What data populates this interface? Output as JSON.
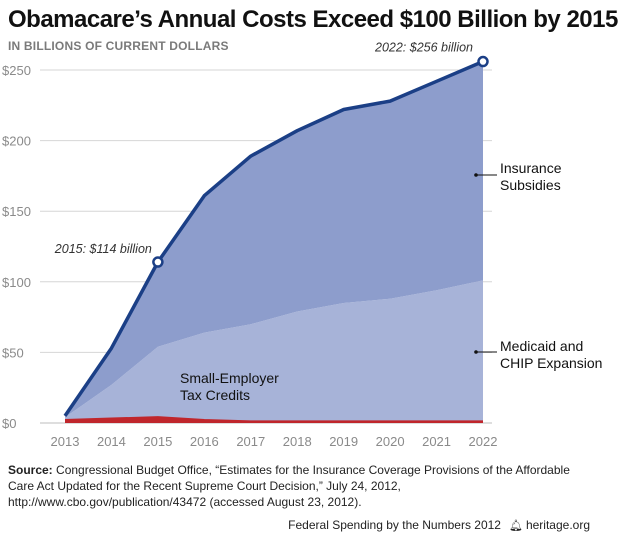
{
  "header": {
    "title": "Obamacare’s Annual Costs Exceed $100 Billion by 2015",
    "subtitle": "IN BILLIONS OF CURRENT DOLLARS"
  },
  "chart_data": {
    "type": "area",
    "stacked": true,
    "x": [
      2013,
      2014,
      2015,
      2016,
      2017,
      2018,
      2019,
      2020,
      2021,
      2022
    ],
    "ylim": [
      0,
      250
    ],
    "y_ticks": [
      "$0",
      "$50",
      "$100",
      "$150",
      "$200",
      "$250"
    ],
    "x_ticks": [
      "2013",
      "2014",
      "2015",
      "2016",
      "2017",
      "2018",
      "2019",
      "2020",
      "2021",
      "2022"
    ],
    "grid": true,
    "series": [
      {
        "name": "Small-Employer Tax Credits",
        "values": [
          2,
          3,
          4,
          2,
          1,
          1,
          1,
          1,
          1,
          1
        ],
        "color": "#c0262c"
      },
      {
        "name": "Medicaid and CHIP Expansion",
        "values": [
          2,
          24,
          50,
          62,
          69,
          78,
          84,
          87,
          93,
          100
        ],
        "color": "#a7b3d8"
      },
      {
        "name": "Insurance Subsidies",
        "values": [
          1,
          26,
          60,
          97,
          119,
          128,
          137,
          140,
          148,
          155
        ],
        "color": "#8d9dcc"
      }
    ],
    "total_line_color": "#1b3f86",
    "annotations": [
      {
        "label": "2015: $114 billion",
        "x": 2015,
        "y": 114
      },
      {
        "label": "2022: $256 billion",
        "x": 2022,
        "y": 256
      }
    ],
    "series_labels": {
      "insurance": [
        "Insurance",
        "Subsidies"
      ],
      "medicaid": [
        "Medicaid and",
        "CHIP Expansion"
      ],
      "employer": [
        "Small-Employer",
        "Tax Credits"
      ]
    }
  },
  "source": {
    "label": "Source:",
    "text": "Congressional Budget Office, “Estimates for the Insurance Coverage Provisions of the Affordable Care Act Updated for the Recent Supreme Court Decision,” July 24, 2012, http://www.cbo.gov/publication/43472 (accessed August 23, 2012)."
  },
  "footer": {
    "series_name": "Federal Spending by the Numbers 2012",
    "site": "heritage.org",
    "icon": "liberty-bell-icon"
  }
}
